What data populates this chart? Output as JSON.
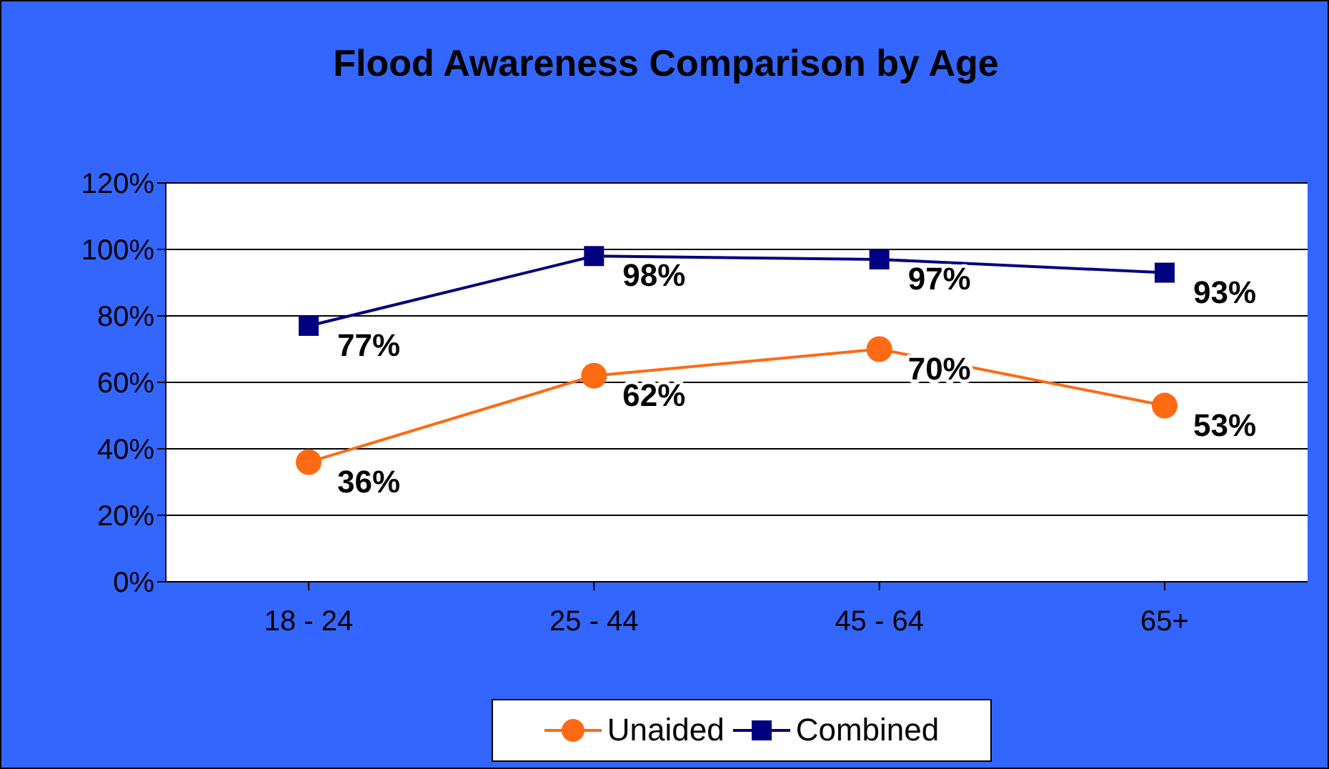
{
  "chart_data": {
    "type": "line",
    "title": "Flood Awareness Comparison by Age",
    "categories": [
      "18 - 24",
      "25 - 44",
      "45 - 64",
      "65+"
    ],
    "series": [
      {
        "name": "Unaided",
        "color": "#ff6a13",
        "marker": "circle",
        "values": [
          36,
          62,
          70,
          53
        ],
        "value_labels": [
          "36%",
          "62%",
          "70%",
          "53%"
        ]
      },
      {
        "name": "Combined",
        "color": "#000080",
        "marker": "square",
        "values": [
          77,
          98,
          97,
          93
        ],
        "value_labels": [
          "77%",
          "98%",
          "97%",
          "93%"
        ]
      }
    ],
    "ylim": [
      0,
      120
    ],
    "yticks": [
      {
        "value": 0,
        "label": "0%"
      },
      {
        "value": 20,
        "label": "20%"
      },
      {
        "value": 40,
        "label": "40%"
      },
      {
        "value": 60,
        "label": "60%"
      },
      {
        "value": 80,
        "label": "80%"
      },
      {
        "value": 100,
        "label": "100%"
      },
      {
        "value": 120,
        "label": "120%"
      }
    ],
    "grid": "y",
    "legend": "bottom"
  }
}
